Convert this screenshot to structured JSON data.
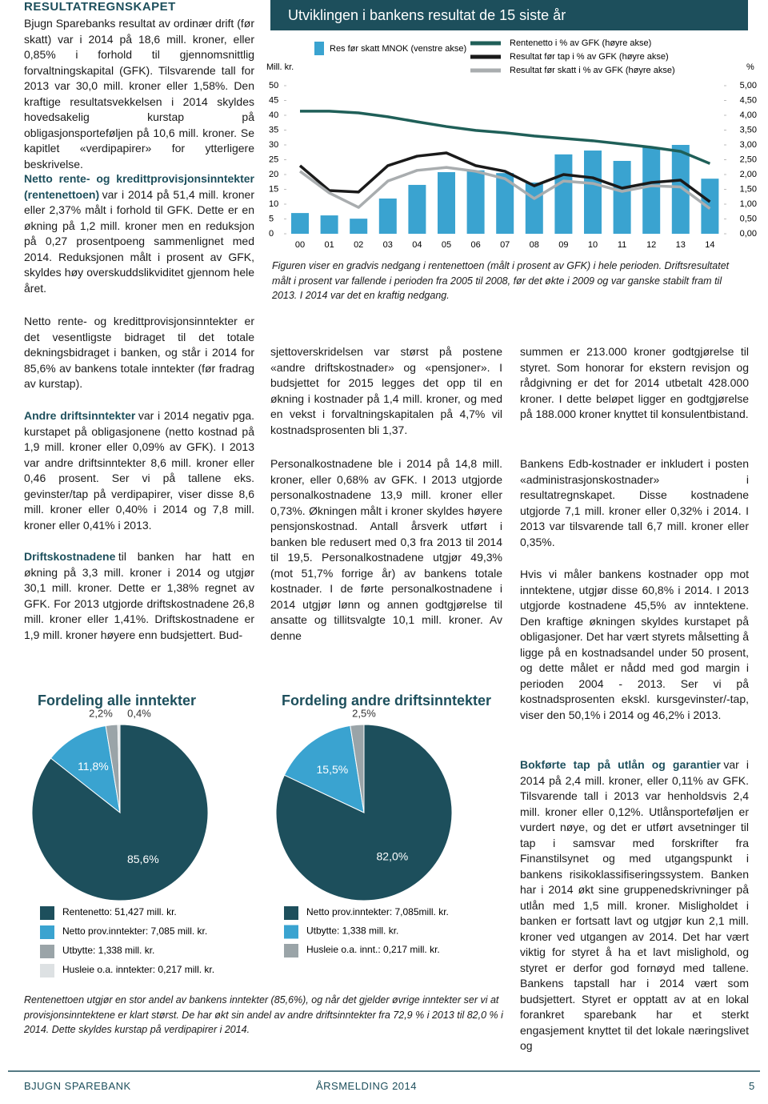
{
  "header": {
    "title": "RESULTATREGNSKAPET"
  },
  "sections": [
    {
      "text": "Bjugn Sparebanks resultat av ordinær drift (før skatt) var i 2014 på 18,6 mill. kroner, eller 0,85% i forhold til gjennomsnittlig forvaltningskapital (GFK). Tilsvarende tall for 2013 var 30,0 mill. kroner eller 1,58%. Den kraftige resultatsvekkelsen i 2014 skyldes hovedsakelig kurstap på obligasjonsporteføljen på 10,6 mill. kroner. Se kapitlet «verdipapirer» for ytterligere beskrivelse."
    },
    {
      "lead": "Netto rente- og kredittprovisjonsinntekter (rentenettoen)",
      "text": "var i 2014 på 51,4 mill. kroner eller 2,37% målt i forhold til GFK. Dette er en økning på 1,2 mill. kroner men en reduksjon på 0,27 prosentpoeng sammenlignet med 2014. Reduksjonen målt i prosent av GFK, skyldes høy overskuddslikviditet gjennom hele året."
    },
    {
      "text": "Netto rente- og kredittprovisjonsinntekter er det vesentligste bidraget til det totale dekningsbidraget i banken, og står i 2014 for 85,6% av bankens totale inntekter (før fradrag av kurstap)."
    },
    {
      "lead": "Andre driftsinntekter",
      "text": "var i 2014 negativ pga. kurstapet på obligasjonene (netto kostnad på 1,9 mill. kroner eller 0,09% av GFK). I 2013 var andre driftsinntekter 8,6 mill. kroner eller 0,46 prosent. Ser vi på tallene eks. gevinster/tap på verdipapirer, viser disse 8,6 mill. kroner eller 0,40% i 2014 og 7,8 mill. kroner eller 0,41% i 2013."
    },
    {
      "lead": "Driftskostnadene",
      "text": "til banken har hatt en økning på 3,3 mill. kroner i 2014 og utgjør 30,1 mill. kroner. Dette er 1,38% regnet av GFK. For 2013 utgjorde driftskostnadene 26,8 mill. kroner eller 1,41%. Driftskostnadene er 1,9 mill. kroner høyere enn budsjettert. Bud-"
    },
    {
      "text": "sjettoverskridelsen var størst på postene «andre driftskostnader» og «pensjoner». I budsjettet for 2015 legges det opp til en økning i kostnader på 1,4 mill. kroner, og med en vekst i forvaltningskapitalen på 4,7% vil kostnadsprosenten bli 1,37."
    },
    {
      "text": "Personalkostnadene ble i 2014 på 14,8 mill. kroner, eller 0,68% av GFK. I 2013 utgjorde personalkostnadene 13,9 mill. kroner eller 0,73%. Økningen målt i kroner skyldes høyere pensjonskostnad. Antall årsverk utført i banken ble redusert med 0,3 fra 2013 til 2014 til 19,5. Personalkostnadene utgjør 49,3% (mot 51,7% forrige år) av bankens totale kostnader. I de førte personalkostnadene i 2014 utgjør lønn og annen godtgjørelse til ansatte og tillitsvalgte 10,1 mill. kroner. Av denne"
    },
    {
      "text": "summen er 213.000 kroner godtgjørelse til styret. Som honorar for ekstern revisjon og rådgivning er det for 2014 utbetalt 428.000 kroner. I dette beløpet ligger en godtgjørelse på 188.000 kroner knyttet til konsulentbistand."
    },
    {
      "text": "Bankens Edb-kostnader er inkludert i posten «administrasjonskostnader» i resultatregnskapet. Disse kostnadene utgjorde 7,1 mill. kroner eller 0,32% i 2014. I 2013 var tilsvarende tall 6,7 mill. kroner eller 0,35%."
    },
    {
      "text": "Hvis vi måler bankens kostnader opp mot inntektene, utgjør disse 60,8% i 2014. I 2013 utgjorde kostnadene 45,5% av inntektene. Den kraftige økningen skyldes kurstapet på obligasjoner. Det har vært styrets målsetting å ligge på en kostnadsandel under 50 prosent, og dette målet er nådd med god margin i perioden 2004 - 2013. Ser vi på kostnadsprosenten ekskl. kursgevinster/-tap, viser den 50,1% i 2014 og 46,2% i 2013."
    },
    {
      "lead": "Bokførte tap på utlån og garantier",
      "text": "var i 2014 på 2,4 mill. kroner, eller 0,11% av GFK. Tilsvarende tall i 2013 var henholdsvis 2,4 mill. kroner eller 0,12%. Utlånsporteføljen er vurdert nøye, og det er utført avsetninger til tap i samsvar med forskrifter fra Finanstilsynet og med utgangspunkt i bankens risikoklassifiseringssystem. Banken har i 2014 økt sine gruppenedskrivninger på utlån med 1,5 mill. kroner. Misligholdet i banken er fortsatt lavt og utgjør kun 2,1 mill. kroner ved utgangen av 2014. Det har vært viktig for styret å ha et lavt mislighold, og styret er derfor god fornøyd med tallene. Bankens tapstall har i 2014 vært som budsjettert. Styret er opptatt av at en lokal forankret sparebank har et sterkt engasjement knyttet til det lokale næringslivet og"
    }
  ],
  "chart_data": [
    {
      "type": "bar",
      "title": "Utviklingen i bankens resultat de 15 siste år",
      "ylabel": "Mill. kr.",
      "y2label": "%",
      "categories": [
        "00",
        "01",
        "02",
        "03",
        "04",
        "05",
        "06",
        "07",
        "08",
        "09",
        "10",
        "11",
        "12",
        "13",
        "14"
      ],
      "ylim": [
        0,
        50
      ],
      "yticks": [
        0,
        5,
        10,
        15,
        20,
        25,
        30,
        35,
        40,
        45,
        50
      ],
      "y2lim": [
        0,
        5
      ],
      "y2ticks": [
        {
          "value": 0,
          "label": "0,00"
        },
        {
          "value": 0.5,
          "label": "0,50"
        },
        {
          "value": 1,
          "label": "1,00"
        },
        {
          "value": 1.5,
          "label": "1,50"
        },
        {
          "value": 2,
          "label": "2,00"
        },
        {
          "value": 2.5,
          "label": "2,50"
        },
        {
          "value": 3,
          "label": "3,00"
        },
        {
          "value": 3.5,
          "label": "3,50"
        },
        {
          "value": 4,
          "label": "4,00"
        },
        {
          "value": 4.5,
          "label": "4,50"
        },
        {
          "value": 5,
          "label": "5,00"
        }
      ],
      "series": [
        {
          "name": "Res før skatt MNOK (venstre akse)",
          "type": "bar",
          "color": "#3aa3d0",
          "values": [
            7.0,
            6.2,
            5.1,
            11.9,
            16.5,
            20.8,
            21.4,
            20.5,
            17.3,
            26.8,
            28.1,
            24.6,
            29.2,
            30.0,
            18.6
          ]
        },
        {
          "name": "Rentenetto i % av GFK (høyre akse)",
          "type": "line",
          "axis": "y2",
          "color": "#1f5f58",
          "values": [
            4.14,
            4.14,
            4.08,
            3.95,
            3.78,
            3.62,
            3.49,
            3.41,
            3.3,
            3.22,
            3.14,
            3.03,
            2.92,
            2.78,
            2.37
          ]
        },
        {
          "name": "Resultat før tap i % av GFK (høyre akse)",
          "type": "line",
          "axis": "y2",
          "color": "#1a1a1a",
          "values": [
            2.3,
            1.46,
            1.41,
            2.3,
            2.62,
            2.73,
            2.3,
            2.11,
            1.62,
            2.0,
            1.89,
            1.54,
            1.73,
            1.81,
            1.08
          ]
        },
        {
          "name": "Resultat før skatt i % av GFK (høyre akse)",
          "type": "line",
          "axis": "y2",
          "color": "#a9adaf",
          "values": [
            2.11,
            1.38,
            0.89,
            1.78,
            2.14,
            2.24,
            2.11,
            1.86,
            1.19,
            1.78,
            1.7,
            1.43,
            1.62,
            1.58,
            0.85
          ]
        }
      ]
    },
    {
      "type": "pie",
      "title": "Fordeling alle inntekter",
      "labels": [
        "Rentenetto: 51,427 mill. kr.",
        "Netto prov.inntekter: 7,085 mill. kr.",
        "Utbytte: 1,338 mill. kr.",
        "Husleie o.a. inntekter: 0,217 mill. kr."
      ],
      "values": [
        85.6,
        11.8,
        2.2,
        0.4
      ],
      "value_labels": [
        "85,6%",
        "11,8%",
        "2,2%",
        "0,4%"
      ],
      "colors": [
        "#1d4f5c",
        "#3aa3d0",
        "#9aa4a8",
        "#dde1e3"
      ]
    },
    {
      "type": "pie",
      "title": "Fordeling andre driftsinntekter",
      "labels": [
        "Netto prov.inntekter: 7,085mill. kr.",
        "Utbytte: 1,338 mill. kr.",
        "Husleie o.a. innt.: 0,217 mill. kr."
      ],
      "values": [
        82.0,
        15.5,
        2.5
      ],
      "value_labels": [
        "82,0%",
        "15,5%",
        "2,5%"
      ],
      "colors": [
        "#1d4f5c",
        "#3aa3d0",
        "#9aa4a8"
      ]
    }
  ],
  "captions": {
    "chart": "Figuren viser en gradvis nedgang i rentenettoen (målt i prosent av GFK) i hele perioden. Driftsresultatet målt i prosent var fallende i perioden fra 2005 til 2008, før det økte i 2009 og var ganske stabilt fram til 2013. I 2014 var det en kraftig nedgang.",
    "pies": "Rentenettoen utgjør en stor andel av bankens inntekter (85,6%), og når det gjelder øvrige inntekter ser vi at provisjonsinntektene er klart størst. De har økt sin andel av andre driftsinntekter fra 72,9 % i 2013 til 82,0 % i 2014. Dette skyldes kurstap på verdipapirer i 2014."
  },
  "footer": {
    "bank": "BJUGN SPAREBANK",
    "report": "ÅRSMELDING 2014",
    "page": "5"
  }
}
